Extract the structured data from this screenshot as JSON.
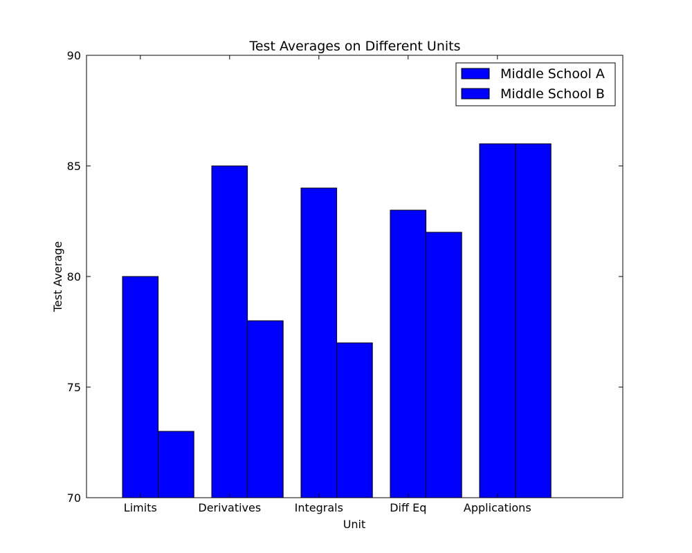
{
  "chart_data": {
    "type": "bar",
    "title": "Test Averages on Different Units",
    "xlabel": "Unit",
    "ylabel": "Test Average",
    "categories": [
      "Limits",
      "Derivatives",
      "Integrals",
      "Diff Eq",
      "Applications"
    ],
    "series": [
      {
        "name": "Middle School A",
        "values": [
          80,
          85,
          84,
          83,
          86
        ],
        "color": "#0000ff"
      },
      {
        "name": "Middle School B",
        "values": [
          73,
          78,
          77,
          82,
          86
        ],
        "color": "#0000ff"
      }
    ],
    "ylim": [
      70,
      90
    ],
    "yticks": [
      "70",
      "75",
      "80",
      "85",
      "90"
    ],
    "grid": false,
    "legend_position": "top-right"
  }
}
